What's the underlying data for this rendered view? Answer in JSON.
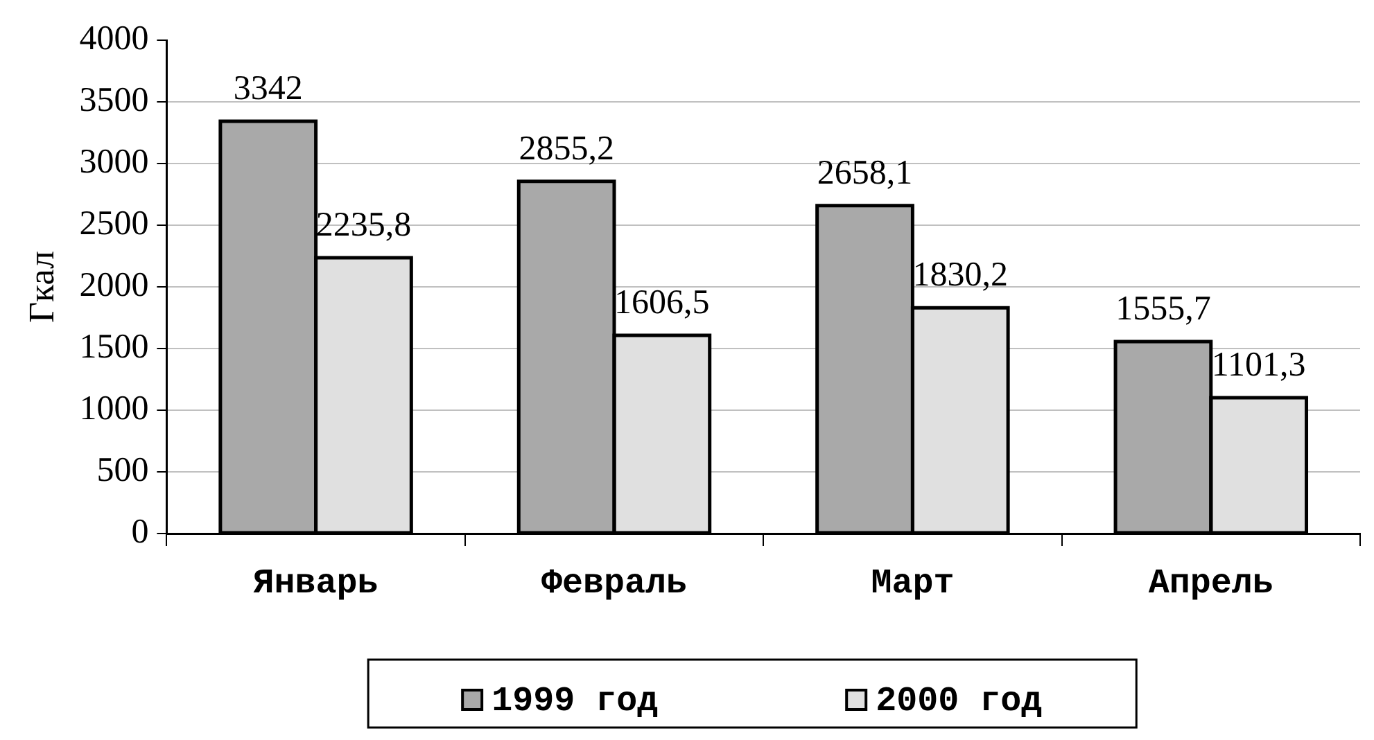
{
  "chart_data": {
    "type": "bar",
    "ylabel": "Гкал",
    "categories": [
      "Январь",
      "Февраль",
      "Март",
      "Апрель"
    ],
    "series": [
      {
        "name": "1999 год",
        "color": "#a9a9a9",
        "values": [
          3342,
          2855.2,
          2658.1,
          1555.7
        ],
        "value_labels": [
          "3342",
          "2855,2",
          "2658,1",
          "1555,7"
        ]
      },
      {
        "name": "2000 год",
        "color": "#e0e0e0",
        "values": [
          2235.8,
          1606.5,
          1830.2,
          1101.3
        ],
        "value_labels": [
          "2235,8",
          "1606,5",
          "1830,2",
          "1101,3"
        ]
      }
    ],
    "ylim": [
      0,
      4000
    ],
    "yticks": [
      0,
      500,
      1000,
      1500,
      2000,
      2500,
      3000,
      3500,
      4000
    ],
    "grid": "y",
    "legend": "bottom"
  }
}
